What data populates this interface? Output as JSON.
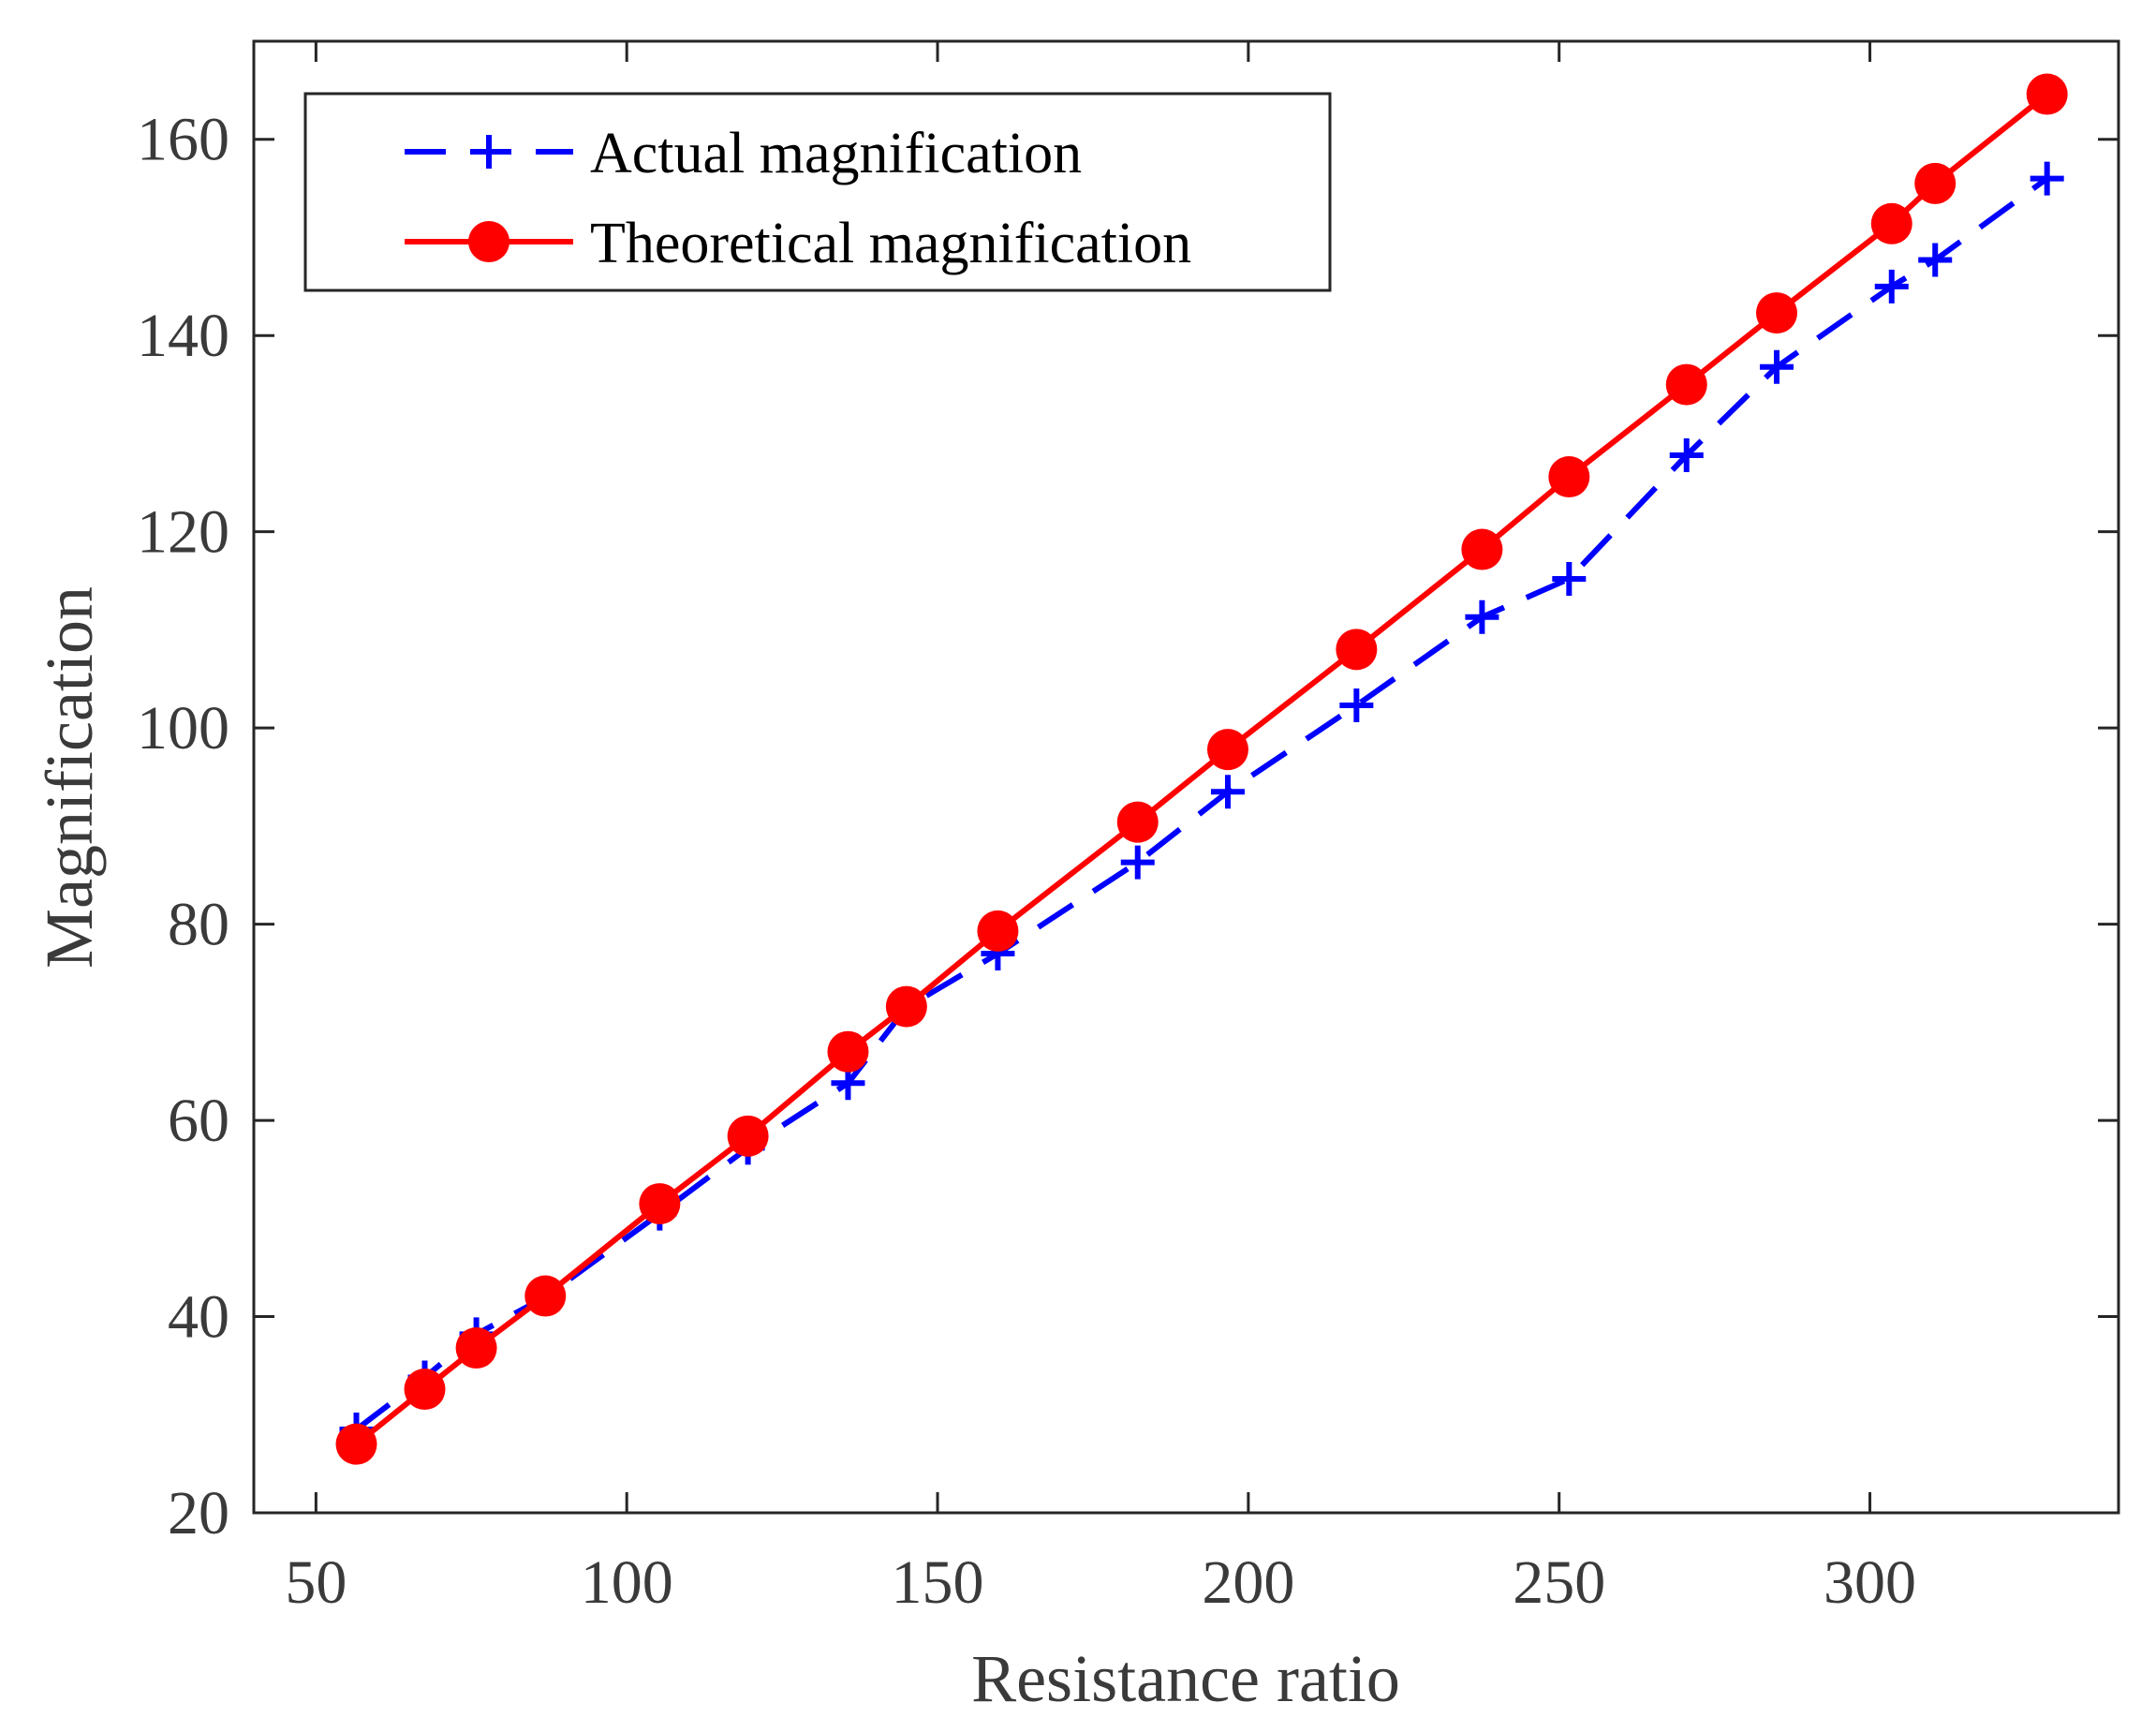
{
  "chart_data": {
    "type": "line",
    "title": "",
    "xlabel": "Resistance ratio",
    "ylabel": "Magnification",
    "xlim": [
      40,
      340
    ],
    "ylim": [
      20,
      170
    ],
    "xticks": [
      50,
      100,
      150,
      200,
      250,
      300
    ],
    "yticks": [
      20,
      40,
      60,
      80,
      100,
      120,
      140,
      160
    ],
    "grid": false,
    "legend_position": "top-left",
    "series": [
      {
        "name": "Actual magnification",
        "style": "dashed",
        "marker": "plus",
        "color": "#0000ff",
        "x": [
          56.5,
          67.5,
          75.8,
          86.9,
          105.3,
          119.5,
          135.6,
          145.0,
          159.7,
          182.2,
          196.7,
          217.4,
          237.6,
          251.6,
          270.5,
          285.0,
          303.5,
          310.5,
          328.5
        ],
        "y": [
          28.5,
          33.8,
          38.2,
          42.0,
          50.5,
          57.2,
          63.8,
          71.5,
          77.0,
          86.3,
          93.5,
          102.3,
          111.3,
          115.2,
          127.8,
          136.8,
          145.0,
          147.7,
          156.0
        ]
      },
      {
        "name": "Theoretical magnification",
        "style": "solid",
        "marker": "circle",
        "color": "#ff0000",
        "x": [
          56.5,
          67.5,
          75.8,
          86.9,
          105.3,
          119.5,
          135.6,
          145.0,
          159.7,
          182.2,
          196.7,
          217.4,
          237.6,
          251.6,
          270.5,
          285.0,
          303.5,
          310.5,
          328.5
        ],
        "y": [
          27.0,
          32.6,
          36.8,
          42.1,
          51.5,
          58.4,
          67.0,
          71.6,
          79.3,
          90.4,
          97.8,
          108.0,
          118.2,
          125.6,
          135.0,
          142.3,
          151.4,
          155.5,
          164.6
        ]
      }
    ]
  }
}
